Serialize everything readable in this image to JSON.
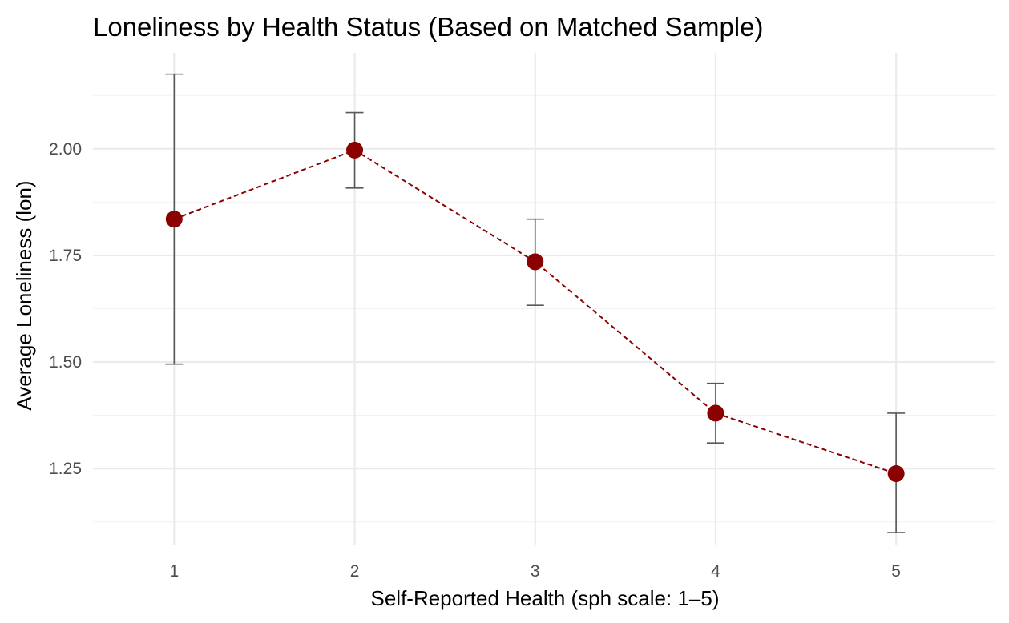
{
  "chart_data": {
    "type": "scatter",
    "title": "Loneliness by Health Status (Based on Matched Sample)",
    "xlabel": "Self-Reported Health (sph scale: 1–5)",
    "ylabel": "Average Loneliness (lon)",
    "x_ticks": [
      "1",
      "2",
      "3",
      "4",
      "5"
    ],
    "y_ticks": [
      "1.25",
      "1.50",
      "1.75",
      "2.00"
    ],
    "xlim": [
      0.55,
      5.55
    ],
    "ylim": [
      1.07,
      2.225
    ],
    "grid": true,
    "connect_points": true,
    "line_style": "dashed",
    "marker_color": "#8b0000",
    "errorbar_color": "#595959",
    "points": [
      {
        "x": 1,
        "y": 1.835,
        "low": 1.495,
        "high": 2.175
      },
      {
        "x": 2,
        "y": 1.997,
        "low": 1.908,
        "high": 2.085
      },
      {
        "x": 3,
        "y": 1.735,
        "low": 1.633,
        "high": 1.835
      },
      {
        "x": 4,
        "y": 1.38,
        "low": 1.31,
        "high": 1.45
      },
      {
        "x": 5,
        "y": 1.238,
        "low": 1.1,
        "high": 1.38
      }
    ]
  }
}
